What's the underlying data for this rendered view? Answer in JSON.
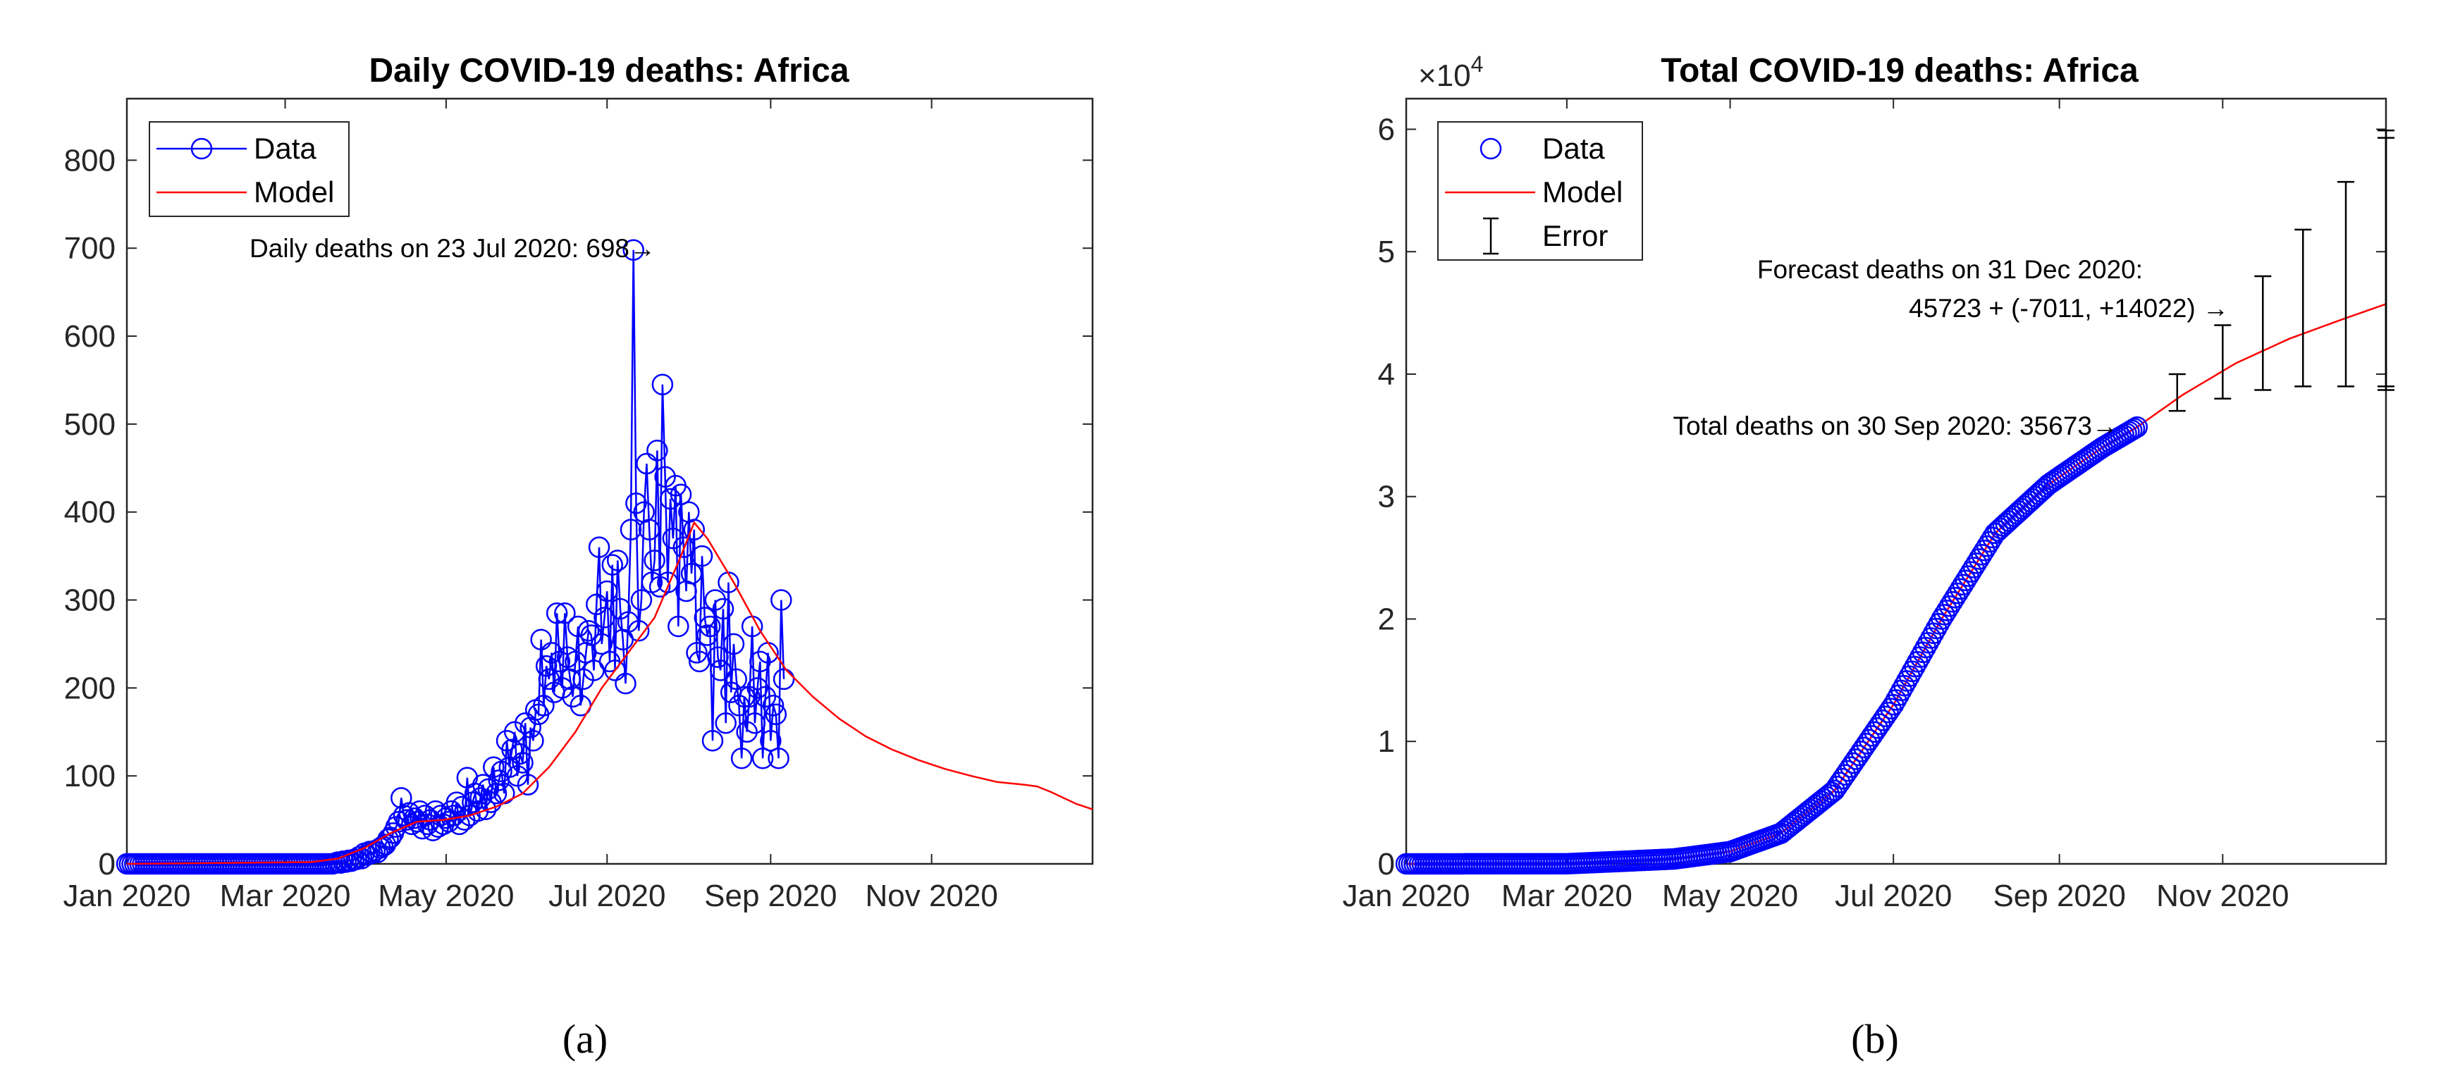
{
  "chart_data": [
    {
      "id": "a",
      "type": "line",
      "title": "Daily COVID-19 deaths: Africa",
      "subfigure_label": "(a)",
      "xlabel": "",
      "ylabel": "",
      "x_unit": "days since 1 Jan 2020",
      "xlim": [
        0,
        366
      ],
      "ylim": [
        0,
        870
      ],
      "yticks": [
        0,
        100,
        200,
        300,
        400,
        500,
        600,
        700,
        800
      ],
      "ytick_labels": [
        "0",
        "100",
        "200",
        "300",
        "400",
        "500",
        "600",
        "700",
        "800"
      ],
      "xticks": [
        0,
        60,
        121,
        182,
        244,
        305
      ],
      "xtick_labels": [
        "Jan 2020",
        "Mar 2020",
        "May 2020",
        "Jul 2020",
        "Sep 2020",
        "Nov 2020"
      ],
      "legend": {
        "position": "top-left",
        "entries": [
          "Data",
          "Model"
        ]
      },
      "annotation": {
        "text": "Daily deaths on 23 Jul 2020: 698→",
        "x": 204,
        "y": 698
      },
      "series": [
        {
          "name": "Data",
          "style": "blue line with circle markers",
          "color": "#0000ff",
          "x_start": 0,
          "values": [
            0,
            0,
            0,
            0,
            0,
            0,
            0,
            0,
            0,
            0,
            0,
            0,
            0,
            0,
            0,
            0,
            0,
            0,
            0,
            0,
            0,
            0,
            0,
            0,
            0,
            0,
            0,
            0,
            0,
            0,
            0,
            0,
            0,
            0,
            0,
            0,
            0,
            0,
            0,
            0,
            0,
            0,
            0,
            0,
            0,
            0,
            0,
            0,
            0,
            0,
            0,
            0,
            0,
            0,
            0,
            0,
            0,
            0,
            0,
            0,
            0,
            0,
            0,
            0,
            0,
            0,
            0,
            0,
            0,
            0,
            0,
            0,
            0,
            0,
            0,
            0,
            0,
            0,
            0,
            1,
            2,
            1,
            3,
            2,
            4,
            3,
            5,
            5,
            8,
            6,
            12,
            10,
            14,
            12,
            15,
            13,
            18,
            20,
            22,
            28,
            30,
            35,
            42,
            48,
            75,
            55,
            50,
            58,
            45,
            52,
            48,
            60,
            40,
            55,
            45,
            50,
            38,
            60,
            42,
            55,
            45,
            52,
            48,
            60,
            55,
            70,
            45,
            65,
            50,
            98,
            55,
            70,
            80,
            60,
            75,
            90,
            62,
            85,
            70,
            110,
            80,
            95,
            105,
            80,
            140,
            110,
            130,
            150,
            100,
            125,
            115,
            160,
            90,
            155,
            140,
            175,
            170,
            255,
            180,
            225,
            210,
            240,
            195,
            285,
            230,
            200,
            285,
            235,
            210,
            190,
            230,
            270,
            180,
            210,
            240,
            265,
            260,
            220,
            295,
            360,
            250,
            280,
            310,
            230,
            340,
            220,
            345,
            290,
            255,
            205,
            275,
            380,
            698,
            410,
            265,
            300,
            400,
            455,
            380,
            320,
            345,
            470,
            315,
            545,
            440,
            320,
            415,
            370,
            430,
            270,
            420,
            360,
            310,
            400,
            330,
            380,
            240,
            230,
            350,
            280,
            260,
            270,
            140,
            300,
            235,
            220,
            290,
            160,
            320,
            195,
            250,
            210,
            180,
            120,
            190,
            150,
            190,
            270,
            160,
            200,
            230,
            120,
            190,
            240,
            140,
            180,
            170,
            120,
            300,
            210
          ]
        },
        {
          "name": "Model",
          "style": "red line",
          "color": "#ff0000",
          "x": [
            0,
            70,
            80,
            90,
            100,
            110,
            120,
            130,
            140,
            150,
            160,
            170,
            180,
            190,
            200,
            210,
            215,
            220,
            230,
            240,
            250,
            260,
            270,
            280,
            290,
            300,
            310,
            320,
            330,
            340,
            345,
            350,
            355,
            360,
            366
          ],
          "y": [
            0,
            2,
            6,
            18,
            35,
            48,
            50,
            55,
            65,
            80,
            110,
            150,
            200,
            240,
            280,
            350,
            388,
            370,
            320,
            265,
            220,
            190,
            165,
            145,
            130,
            118,
            108,
            100,
            93,
            90,
            88,
            82,
            75,
            68,
            62
          ]
        }
      ]
    },
    {
      "id": "b",
      "type": "scatter",
      "title": "Total COVID-19 deaths: Africa",
      "subfigure_label": "(b)",
      "xlabel": "",
      "ylabel": "",
      "y_exponent_label": "×10",
      "y_exponent_power": "4",
      "x_unit": "days since 1 Jan 2020",
      "xlim": [
        0,
        366
      ],
      "ylim": [
        0,
        62500
      ],
      "yticks": [
        0,
        10000,
        20000,
        30000,
        40000,
        50000,
        60000
      ],
      "ytick_labels": [
        "0",
        "1",
        "2",
        "3",
        "4",
        "5",
        "6"
      ],
      "xticks": [
        0,
        60,
        121,
        182,
        244,
        305
      ],
      "xtick_labels": [
        "Jan 2020",
        "Mar 2020",
        "May 2020",
        "Jul 2020",
        "Sep 2020",
        "Nov 2020"
      ],
      "legend": {
        "position": "top-left",
        "entries": [
          "Data",
          "Model",
          "Error"
        ]
      },
      "annotations": [
        {
          "line1": "Forecast deaths on 31 Dec 2020:",
          "line2": "45723 + (-7011, +14022) →",
          "x": 366,
          "y": 45723
        },
        {
          "text": "Total deaths on 30 Sep 2020: 35673→",
          "x": 273,
          "y": 35673
        }
      ],
      "series": [
        {
          "name": "Data",
          "style": "blue circles",
          "color": "#0000ff",
          "x_start": 0,
          "x_end": 273,
          "anchors": {
            "x": [
              0,
              60,
              80,
              100,
              121,
              140,
              160,
              182,
              200,
              220,
              240,
              260,
              273
            ],
            "y": [
              0,
              10,
              200,
              400,
              1000,
              2500,
              6000,
              13000,
              20000,
              27000,
              31000,
              34000,
              35673
            ]
          }
        },
        {
          "name": "Model",
          "style": "red line",
          "color": "#ff0000",
          "x": [
            0,
            60,
            80,
            100,
            121,
            140,
            160,
            182,
            200,
            220,
            240,
            260,
            273,
            290,
            310,
            330,
            350,
            366
          ],
          "y": [
            0,
            10,
            200,
            400,
            1000,
            2500,
            6000,
            13000,
            20000,
            27000,
            31000,
            34000,
            35673,
            38300,
            40900,
            42900,
            44500,
            45723
          ]
        },
        {
          "name": "Error",
          "style": "black error bars",
          "color": "#000000",
          "x": [
            288,
            305,
            320,
            335,
            351,
            366,
            366
          ],
          "lower": [
            37000,
            38000,
            38700,
            39000,
            39000,
            39000,
            38700
          ],
          "upper": [
            40000,
            44000,
            48000,
            51800,
            55700,
            59300,
            59900
          ]
        }
      ]
    }
  ]
}
